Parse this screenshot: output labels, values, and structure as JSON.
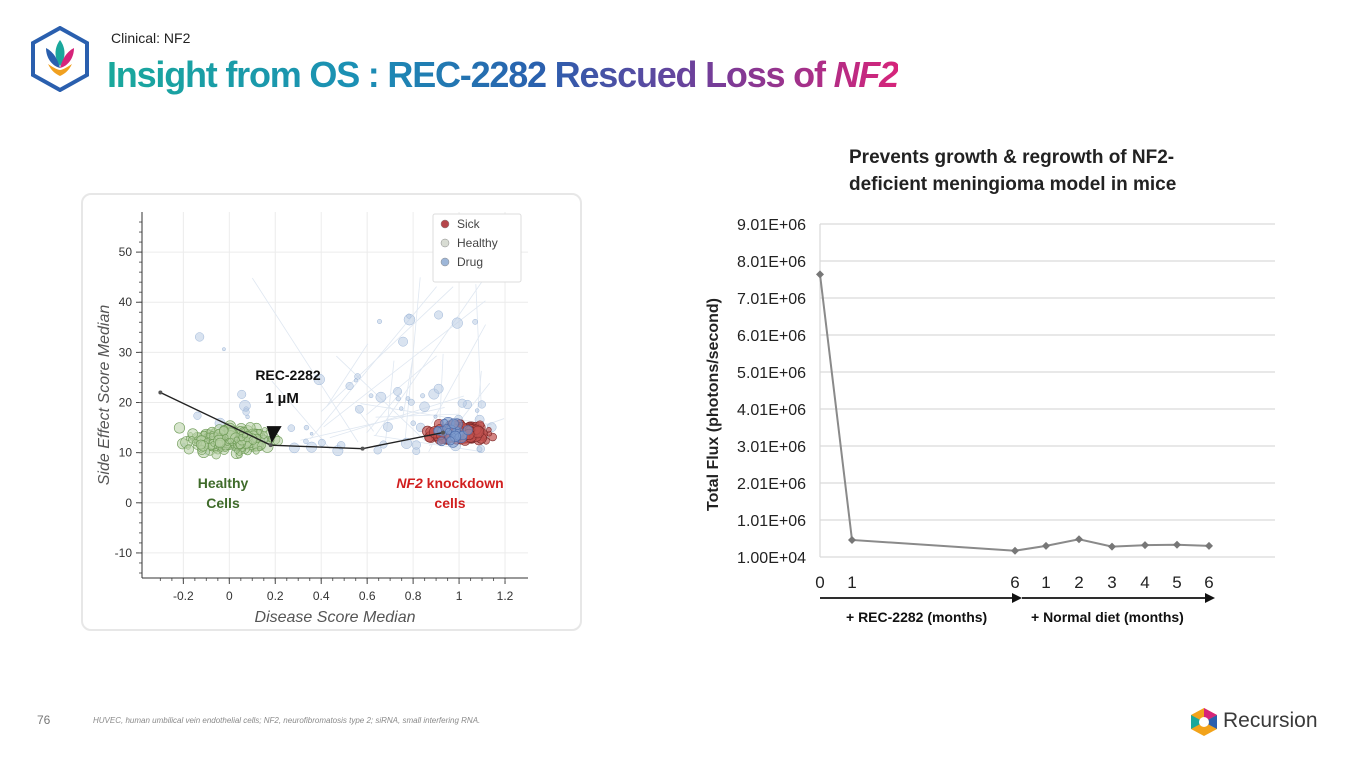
{
  "header": {
    "section": "Clinical: NF2",
    "title_main": "Insight from OS : REC-2282 Rescued Loss of ",
    "title_em": "NF2"
  },
  "chart_data": [
    {
      "type": "scatter",
      "xlabel": "Disease Score Median",
      "ylabel": "Side Effect Score Median",
      "xlim": [
        -0.38,
        1.3
      ],
      "ylim": [
        -15,
        58
      ],
      "x_ticks": [
        -0.2,
        0,
        0.2,
        0.4,
        0.6,
        0.8,
        1,
        1.2
      ],
      "x_tick_labels": [
        "-0.2",
        "0",
        "0.2",
        "0.4",
        "0.6",
        "0.8",
        "1",
        "1.2"
      ],
      "y_ticks": [
        -10,
        0,
        10,
        20,
        30,
        40,
        50
      ],
      "y_tick_labels": [
        "-10",
        "0",
        "10",
        "20",
        "30",
        "40",
        "50"
      ],
      "grid": true,
      "legend_position": "top-right",
      "legend": [
        {
          "label": "Sick",
          "color": "#b5454a"
        },
        {
          "label": "Healthy",
          "color": "#d8dcd3"
        },
        {
          "label": "Drug",
          "color": "#9db6d8"
        }
      ],
      "clusters": [
        {
          "name": "Healthy",
          "x_center": 0.0,
          "y_center": 12.5,
          "x_spread": 0.26,
          "y_spread": 3.5
        },
        {
          "name": "Sick",
          "x_center": 1.0,
          "y_center": 14.0,
          "x_spread": 0.16,
          "y_spread": 2.0
        }
      ],
      "trajectory": {
        "x": [
          -0.3,
          0.18,
          0.58,
          0.93
        ],
        "y": [
          22,
          11.5,
          10.8,
          14
        ]
      },
      "annotations": {
        "compound_name": "REC-2282",
        "compound_dose": "1 µM",
        "compound_point": {
          "x": 0.18,
          "y": 11.5
        },
        "healthy_label_1": "Healthy",
        "healthy_label_2": "Cells",
        "sick_label_em": "NF2",
        "sick_label_1": " knockdown",
        "sick_label_2": "cells"
      }
    },
    {
      "type": "line",
      "title": "Prevents growth & regrowth of NF2-deficient meningioma model in mice",
      "ylabel": "Total Flux (photons/second)",
      "ylim": [
        10000,
        9010000
      ],
      "y_ticks": [
        10000,
        1010000,
        2010000,
        3010000,
        4010000,
        5010000,
        6010000,
        7010000,
        8010000,
        9010000
      ],
      "y_tick_labels": [
        "1.00E+04",
        "1.01E+06",
        "2.01E+06",
        "3.01E+06",
        "4.01E+06",
        "5.01E+06",
        "6.01E+06",
        "7.01E+06",
        "8.01E+06",
        "9.01E+06"
      ],
      "x_labels": [
        "0",
        "1",
        "6",
        "1",
        "2",
        "3",
        "4",
        "5",
        "6"
      ],
      "values": [
        7650000,
        470000,
        180000,
        310000,
        490000,
        290000,
        330000,
        340000,
        310000
      ],
      "grid": true,
      "phases": [
        {
          "label": "+ REC-2282 (months)"
        },
        {
          "label": "+ Normal diet (months)"
        }
      ]
    }
  ],
  "footer": {
    "page_number": "76",
    "note": "HUVEC, human umbilical vein endothelial cells; NF2, neurofibromatosis type 2; siRNA, small interfering RNA.",
    "brand": "Recursion"
  },
  "colors": {
    "healthy_label": "#3f6b2a",
    "sick_label": "#d11f1f",
    "trend_line": "#8a8a8a"
  }
}
